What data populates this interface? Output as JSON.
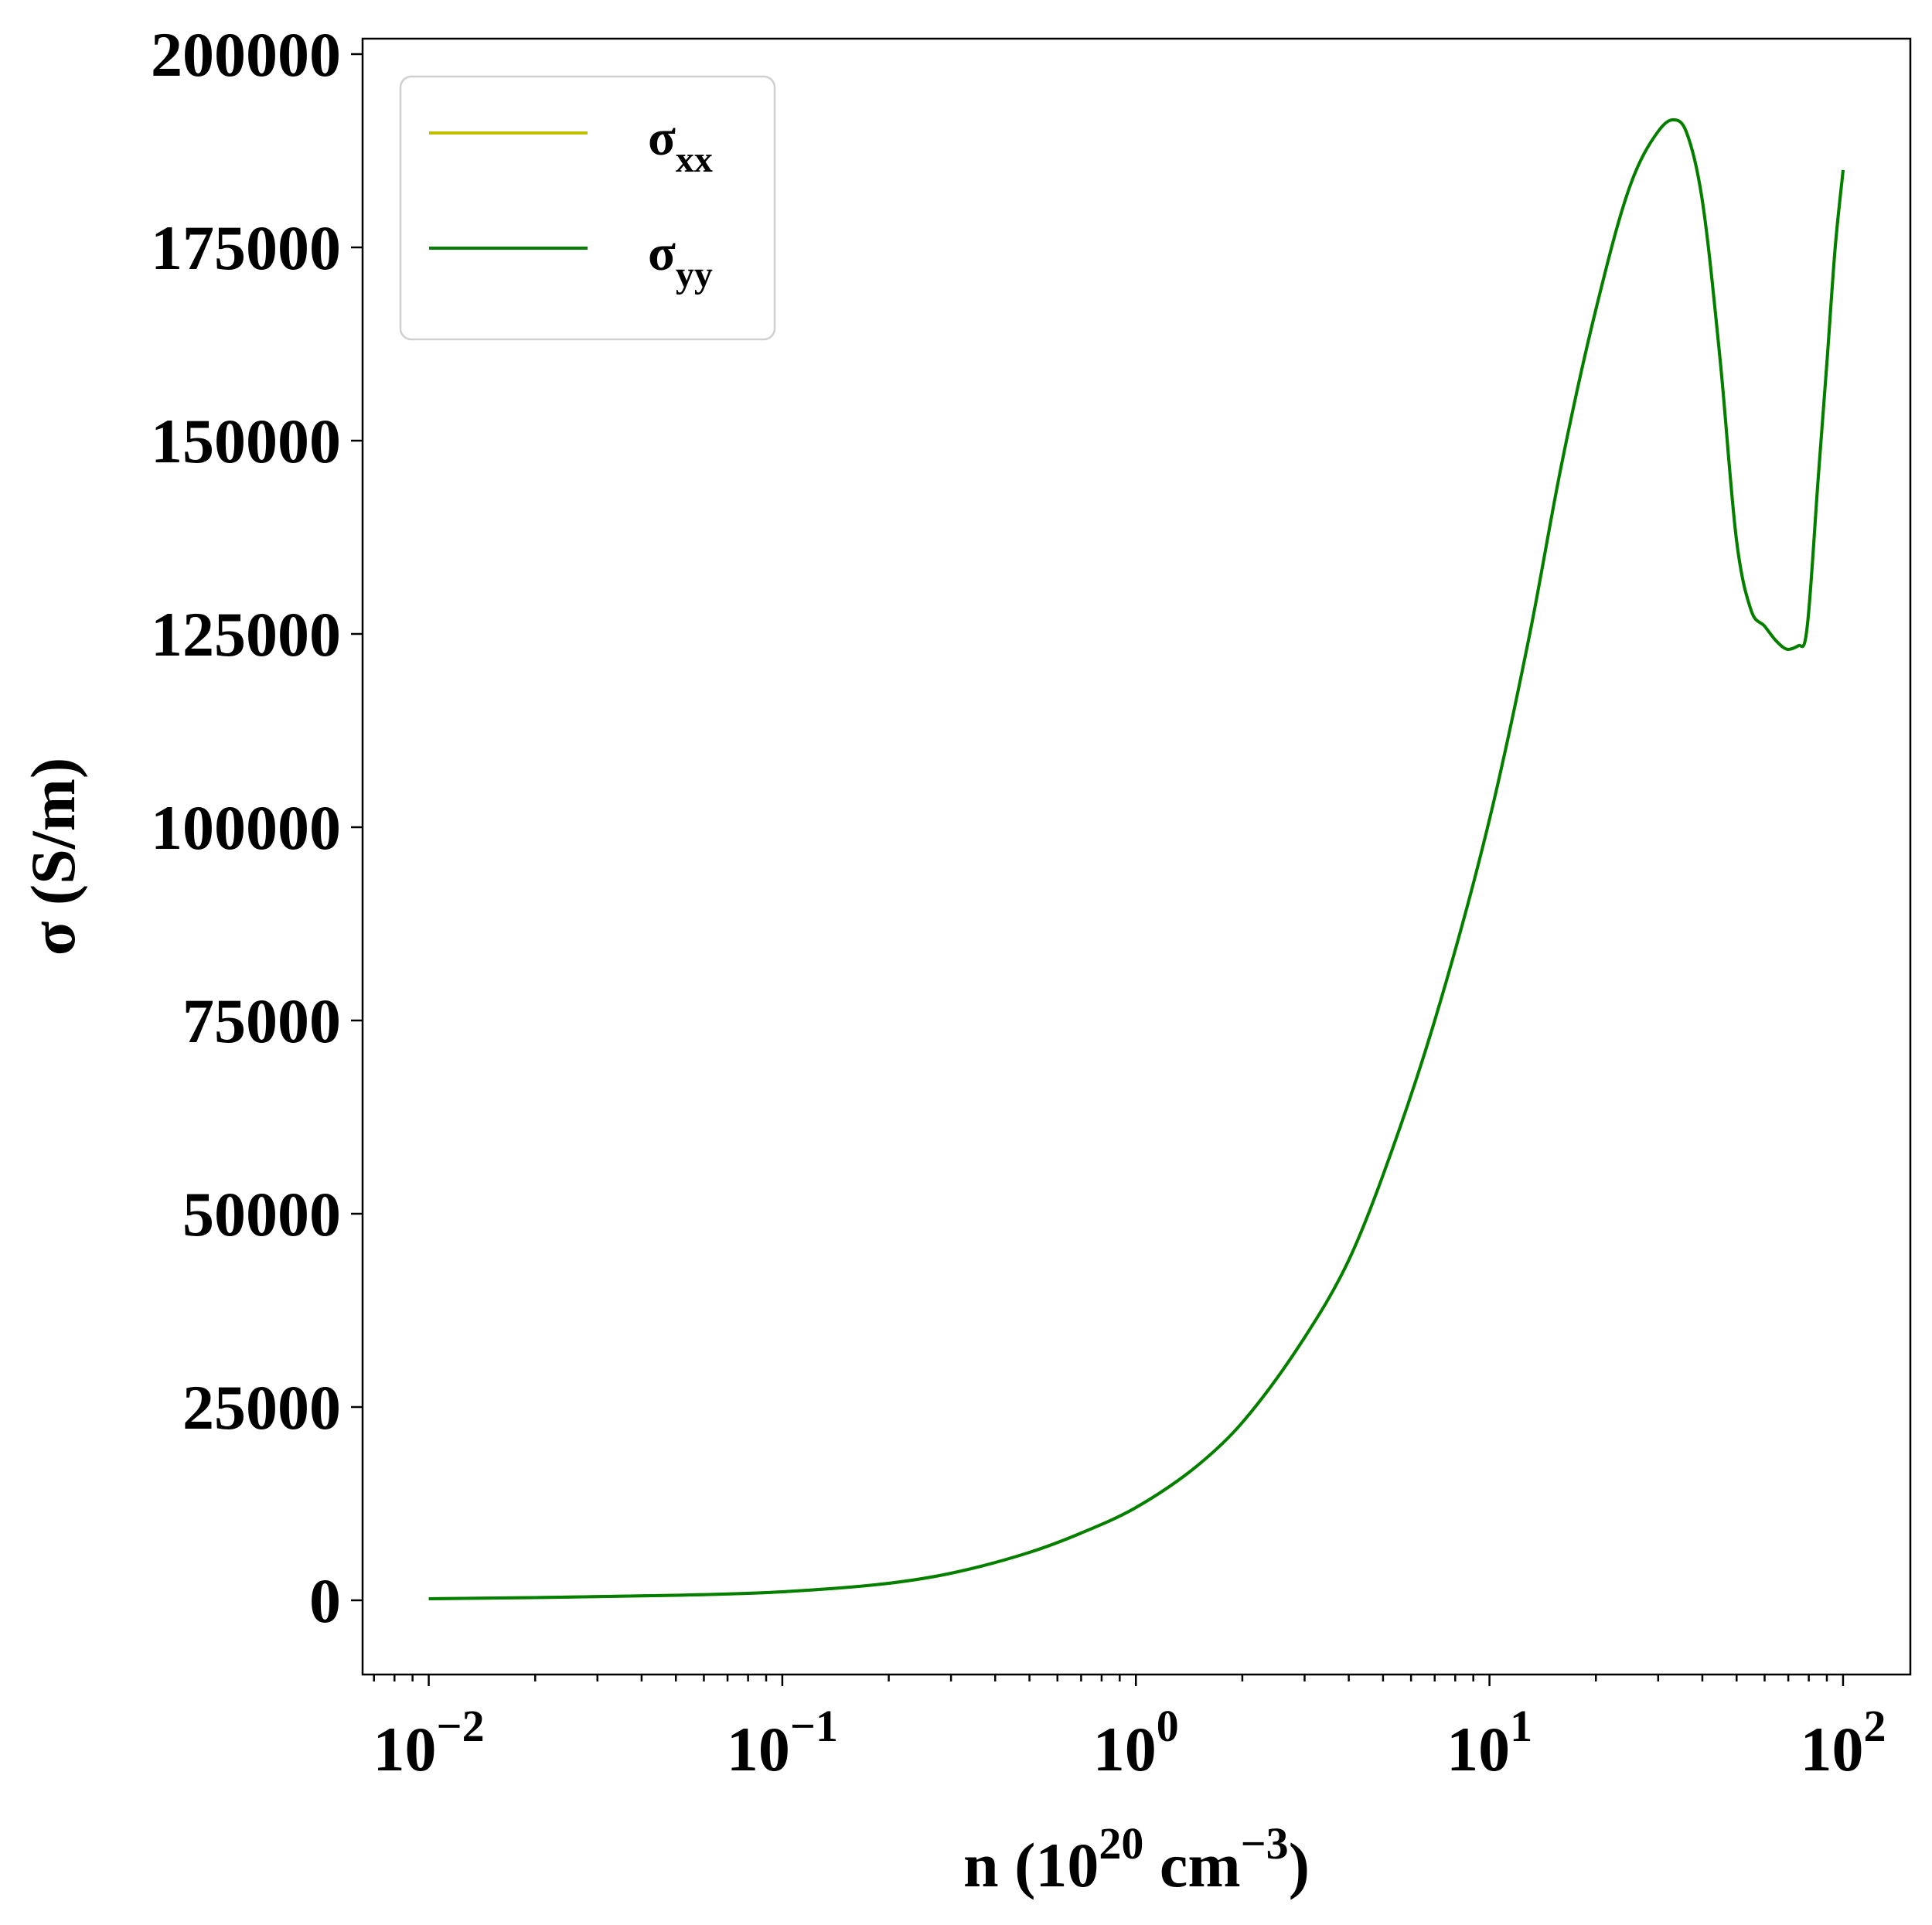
{
  "chart_data": {
    "type": "line",
    "title": "",
    "xlabel": {
      "base": "n (10",
      "sup1": "20",
      "mid": " cm",
      "sup2": "−3",
      "end": ")"
    },
    "ylabel": "σ (S/m)",
    "xscale": "log",
    "xlim": [
      0.0065,
      155
    ],
    "ylim": [
      -9600,
      202000
    ],
    "grid": false,
    "legend_position": "top-left",
    "x_ticks": [
      {
        "value": 0.01,
        "base": "10",
        "exp": "−2"
      },
      {
        "value": 0.1,
        "base": "10",
        "exp": "−1"
      },
      {
        "value": 1,
        "base": "10",
        "exp": "0"
      },
      {
        "value": 10,
        "base": "10",
        "exp": "1"
      },
      {
        "value": 100,
        "base": "10",
        "exp": "2"
      }
    ],
    "y_ticks": [
      {
        "value": 0,
        "label": "0"
      },
      {
        "value": 25000,
        "label": "25000"
      },
      {
        "value": 50000,
        "label": "50000"
      },
      {
        "value": 75000,
        "label": "75000"
      },
      {
        "value": 100000,
        "label": "100000"
      },
      {
        "value": 125000,
        "label": "125000"
      },
      {
        "value": 150000,
        "label": "150000"
      },
      {
        "value": 175000,
        "label": "175000"
      },
      {
        "value": 200000,
        "label": "200000"
      }
    ],
    "series": [
      {
        "name": {
          "base": "σ",
          "sub": "xx"
        },
        "color": "#bfbf00",
        "x": [
          0.01,
          0.02,
          0.05,
          0.1,
          0.2,
          0.3,
          0.5,
          0.7,
          1.0,
          1.5,
          2.0,
          3.0,
          4.0,
          5.0,
          7.0,
          10,
          13,
          16,
          20,
          25,
          30,
          33,
          36,
          40,
          45,
          50,
          55,
          60,
          65,
          70,
          75,
          78,
          80,
          85,
          90,
          95,
          100
        ],
        "y": [
          200,
          350,
          650,
          1100,
          2200,
          3500,
          6200,
          8700,
          12000,
          17500,
          23000,
          34000,
          44000,
          55000,
          75000,
          101000,
          125000,
          147000,
          167000,
          183000,
          190000,
          191500,
          190000,
          181000,
          160000,
          137000,
          128000,
          126000,
          124000,
          123000,
          123500,
          124000,
          128000,
          145000,
          160000,
          175000,
          185000
        ]
      },
      {
        "name": {
          "base": "σ",
          "sub": "yy"
        },
        "color": "#007f00",
        "x": [
          0.01,
          0.02,
          0.05,
          0.1,
          0.2,
          0.3,
          0.5,
          0.7,
          1.0,
          1.5,
          2.0,
          3.0,
          4.0,
          5.0,
          7.0,
          10,
          13,
          16,
          20,
          25,
          30,
          33,
          36,
          40,
          45,
          50,
          55,
          60,
          65,
          70,
          75,
          78,
          80,
          85,
          90,
          95,
          100
        ],
        "y": [
          200,
          350,
          650,
          1100,
          2200,
          3500,
          6200,
          8700,
          12000,
          17500,
          23000,
          34000,
          44000,
          55000,
          75000,
          101000,
          125000,
          147000,
          167000,
          183000,
          190000,
          191500,
          190000,
          181000,
          160000,
          137000,
          128000,
          126000,
          124000,
          123000,
          123500,
          124000,
          128000,
          145000,
          160000,
          175000,
          185000
        ]
      }
    ]
  }
}
